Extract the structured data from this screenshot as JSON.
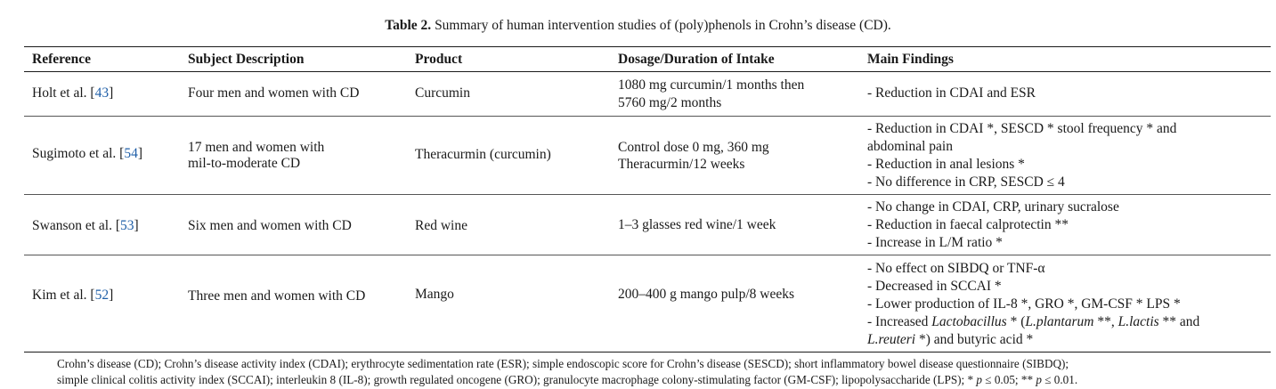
{
  "caption": {
    "label": "Table 2.",
    "text": " Summary of human intervention studies of (poly)phenols in Crohn’s disease (CD)."
  },
  "headers": {
    "reference": "Reference",
    "subject": "Subject Description",
    "product": "Product",
    "dosage": "Dosage/Duration of Intake",
    "findings": "Main Findings"
  },
  "rows": [
    {
      "ref_author": "Holt et al. [",
      "ref_num": "43",
      "ref_close": "]",
      "subject": [
        "Four men and women with CD"
      ],
      "product": "Curcumin",
      "dosage": [
        "1080 mg curcumin/1 months then",
        "5760 mg/2 months"
      ],
      "findings": [
        "- Reduction in CDAI and ESR"
      ]
    },
    {
      "ref_author": "Sugimoto et al. [",
      "ref_num": "54",
      "ref_close": "]",
      "subject": [
        "17 men and women with",
        "mil-to-moderate CD"
      ],
      "product": "Theracurmin (curcumin)",
      "dosage": [
        "Control dose 0 mg, 360 mg",
        "Theracurmin/12 weeks"
      ],
      "findings": [
        "- Reduction in CDAI *, SESCD * stool frequency * and",
        "abdominal pain",
        "- Reduction in anal lesions *",
        "- No difference in CRP, SESCD ≤ 4"
      ]
    },
    {
      "ref_author": "Swanson et al. [",
      "ref_num": "53",
      "ref_close": "]",
      "subject": [
        "Six men and women with CD"
      ],
      "product": "Red wine",
      "dosage": [
        "1–3 glasses red wine/1 week"
      ],
      "findings": [
        "- No change in CDAI, CRP, urinary sucralose",
        "- Reduction in faecal calprotectin **",
        "- Increase in L/M ratio *"
      ]
    },
    {
      "ref_author": "Kim et al. [",
      "ref_num": "52",
      "ref_close": "]",
      "subject": [
        "Three men and women with CD"
      ],
      "product": "Mango",
      "dosage": [
        "200–400 g mango pulp/8 weeks"
      ],
      "findings": [
        "- No effect on SIBDQ or TNF-α",
        "- Decreased in SCCAI *",
        "- Lower production of IL-8 *, GRO *, GM-CSF * LPS *"
      ],
      "findings_rich": {
        "l4_a": "- Increased ",
        "l4_b": "Lactobacillus",
        "l4_c": " * (",
        "l4_d": "L.plantarum",
        "l4_e": " **, ",
        "l4_f": "L.lactis",
        "l4_g": " ** and",
        "l5_a": "L.reuteri",
        "l5_b": " *) and butyric acid *"
      }
    }
  ],
  "footnote": {
    "line1": "Crohn’s disease (CD); Crohn’s disease activity index (CDAI); erythrocyte sedimentation rate (ESR); simple endoscopic score for Crohn’s disease (SESCD); short inflammatory bowel disease questionnaire (SIBDQ);",
    "line2_a": "simple clinical colitis activity index (SCCAI); interleukin 8 (IL-8); growth regulated oncogene (GRO); granulocyte macrophage colony-stimulating factor (GM-CSF); lipopolysaccharide (LPS); * ",
    "line2_p1": "p",
    "line2_b": " ≤ 0.05; ** ",
    "line2_p2": "p",
    "line2_c": " ≤ 0.01."
  },
  "colors": {
    "link": "#1f5fa8",
    "text": "#1a1a1a"
  }
}
